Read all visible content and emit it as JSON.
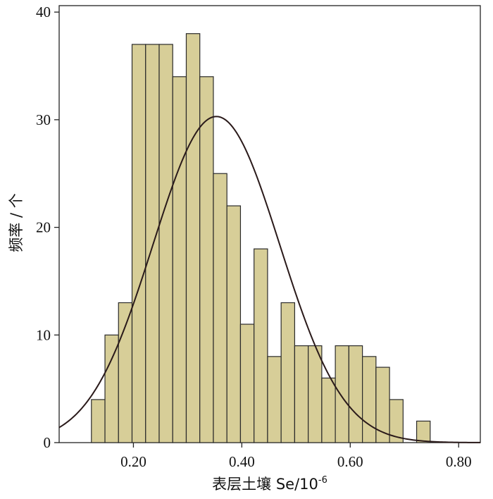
{
  "chart_data": {
    "type": "bar",
    "title": "",
    "xlabel": "表层土壤 Se/10",
    "xlabel_superscript": "-6",
    "ylabel": "频率 / 个",
    "xlim": [
      0.063,
      0.84
    ],
    "ylim": [
      0,
      40.6
    ],
    "xticks": [
      0.2,
      0.4,
      0.6,
      0.8
    ],
    "xtick_labels": [
      "0.20",
      "0.40",
      "0.60",
      "0.80"
    ],
    "yticks": [
      0,
      10,
      20,
      30,
      40
    ],
    "ytick_labels": [
      "0",
      "10",
      "20",
      "30",
      "40"
    ],
    "grid": false,
    "legend": "none",
    "bar_color": "#d7ce98",
    "line_color": "#2a1a1a",
    "bin_width": 0.025,
    "bins": [
      {
        "x0": 0.1225,
        "x1": 0.1475,
        "count": 4
      },
      {
        "x0": 0.1475,
        "x1": 0.1725,
        "count": 10
      },
      {
        "x0": 0.1725,
        "x1": 0.1975,
        "count": 13
      },
      {
        "x0": 0.1975,
        "x1": 0.2225,
        "count": 37
      },
      {
        "x0": 0.2225,
        "x1": 0.2475,
        "count": 37
      },
      {
        "x0": 0.2475,
        "x1": 0.2725,
        "count": 37
      },
      {
        "x0": 0.2725,
        "x1": 0.2975,
        "count": 34
      },
      {
        "x0": 0.2975,
        "x1": 0.3225,
        "count": 38
      },
      {
        "x0": 0.3225,
        "x1": 0.3475,
        "count": 34
      },
      {
        "x0": 0.3475,
        "x1": 0.3725,
        "count": 25
      },
      {
        "x0": 0.3725,
        "x1": 0.3975,
        "count": 22
      },
      {
        "x0": 0.3975,
        "x1": 0.4225,
        "count": 11
      },
      {
        "x0": 0.4225,
        "x1": 0.4475,
        "count": 18
      },
      {
        "x0": 0.4475,
        "x1": 0.4725,
        "count": 8
      },
      {
        "x0": 0.4725,
        "x1": 0.4975,
        "count": 13
      },
      {
        "x0": 0.4975,
        "x1": 0.5225,
        "count": 9
      },
      {
        "x0": 0.5225,
        "x1": 0.5475,
        "count": 9
      },
      {
        "x0": 0.5475,
        "x1": 0.5725,
        "count": 6
      },
      {
        "x0": 0.5725,
        "x1": 0.5975,
        "count": 9
      },
      {
        "x0": 0.5975,
        "x1": 0.6225,
        "count": 9
      },
      {
        "x0": 0.6225,
        "x1": 0.6475,
        "count": 8
      },
      {
        "x0": 0.6475,
        "x1": 0.6725,
        "count": 7
      },
      {
        "x0": 0.6725,
        "x1": 0.6975,
        "count": 4
      },
      {
        "x0": 0.7225,
        "x1": 0.7475,
        "count": 2
      }
    ],
    "normal_curve": {
      "mean": 0.353,
      "sd": 0.117,
      "peak": 30.3
    }
  }
}
